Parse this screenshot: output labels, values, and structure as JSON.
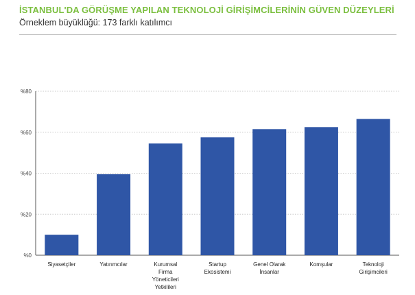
{
  "header": {
    "title": "İSTANBUL'DA GÖRÜŞME YAPILAN TEKNOLOJİ GİRİŞİMCİLERİNİN GÜVEN DÜZEYLERİ",
    "subtitle": "Örneklem büyüklüğü: 173 farklı katılımcı"
  },
  "colors": {
    "title": "#7bbf3f",
    "bar": "#2f56a6",
    "grid": "#c8c8c8",
    "axis": "#555555"
  },
  "chart_data": {
    "type": "bar",
    "title": "İSTANBUL'DA GÖRÜŞME YAPILAN TEKNOLOJİ GİRİŞİMCİLERİNİN GÜVEN DÜZEYLERİ",
    "subtitle": "Örneklem büyüklüğü: 173 farklı katılımcı",
    "xlabel": "",
    "ylabel": "",
    "ylim": [
      0,
      80
    ],
    "yticks": [
      0,
      20,
      40,
      60,
      80
    ],
    "ytick_labels": [
      "%0",
      "%20",
      "%40",
      "%60",
      "%80"
    ],
    "grid": true,
    "categories": [
      [
        "Siyasetçiler"
      ],
      [
        "Yatırımcılar"
      ],
      [
        "Kurumsal",
        "Firma",
        "Yöneticileri",
        "Yetkilileri"
      ],
      [
        "Startup",
        "Ekosistemi"
      ],
      [
        "Genel Olarak",
        "İnsanlar"
      ],
      [
        "Komşular"
      ],
      [
        "Teknoloji",
        "Girişimcileri"
      ]
    ],
    "values": [
      10,
      39.5,
      54.5,
      57.5,
      61.5,
      62.5,
      66.5
    ]
  }
}
